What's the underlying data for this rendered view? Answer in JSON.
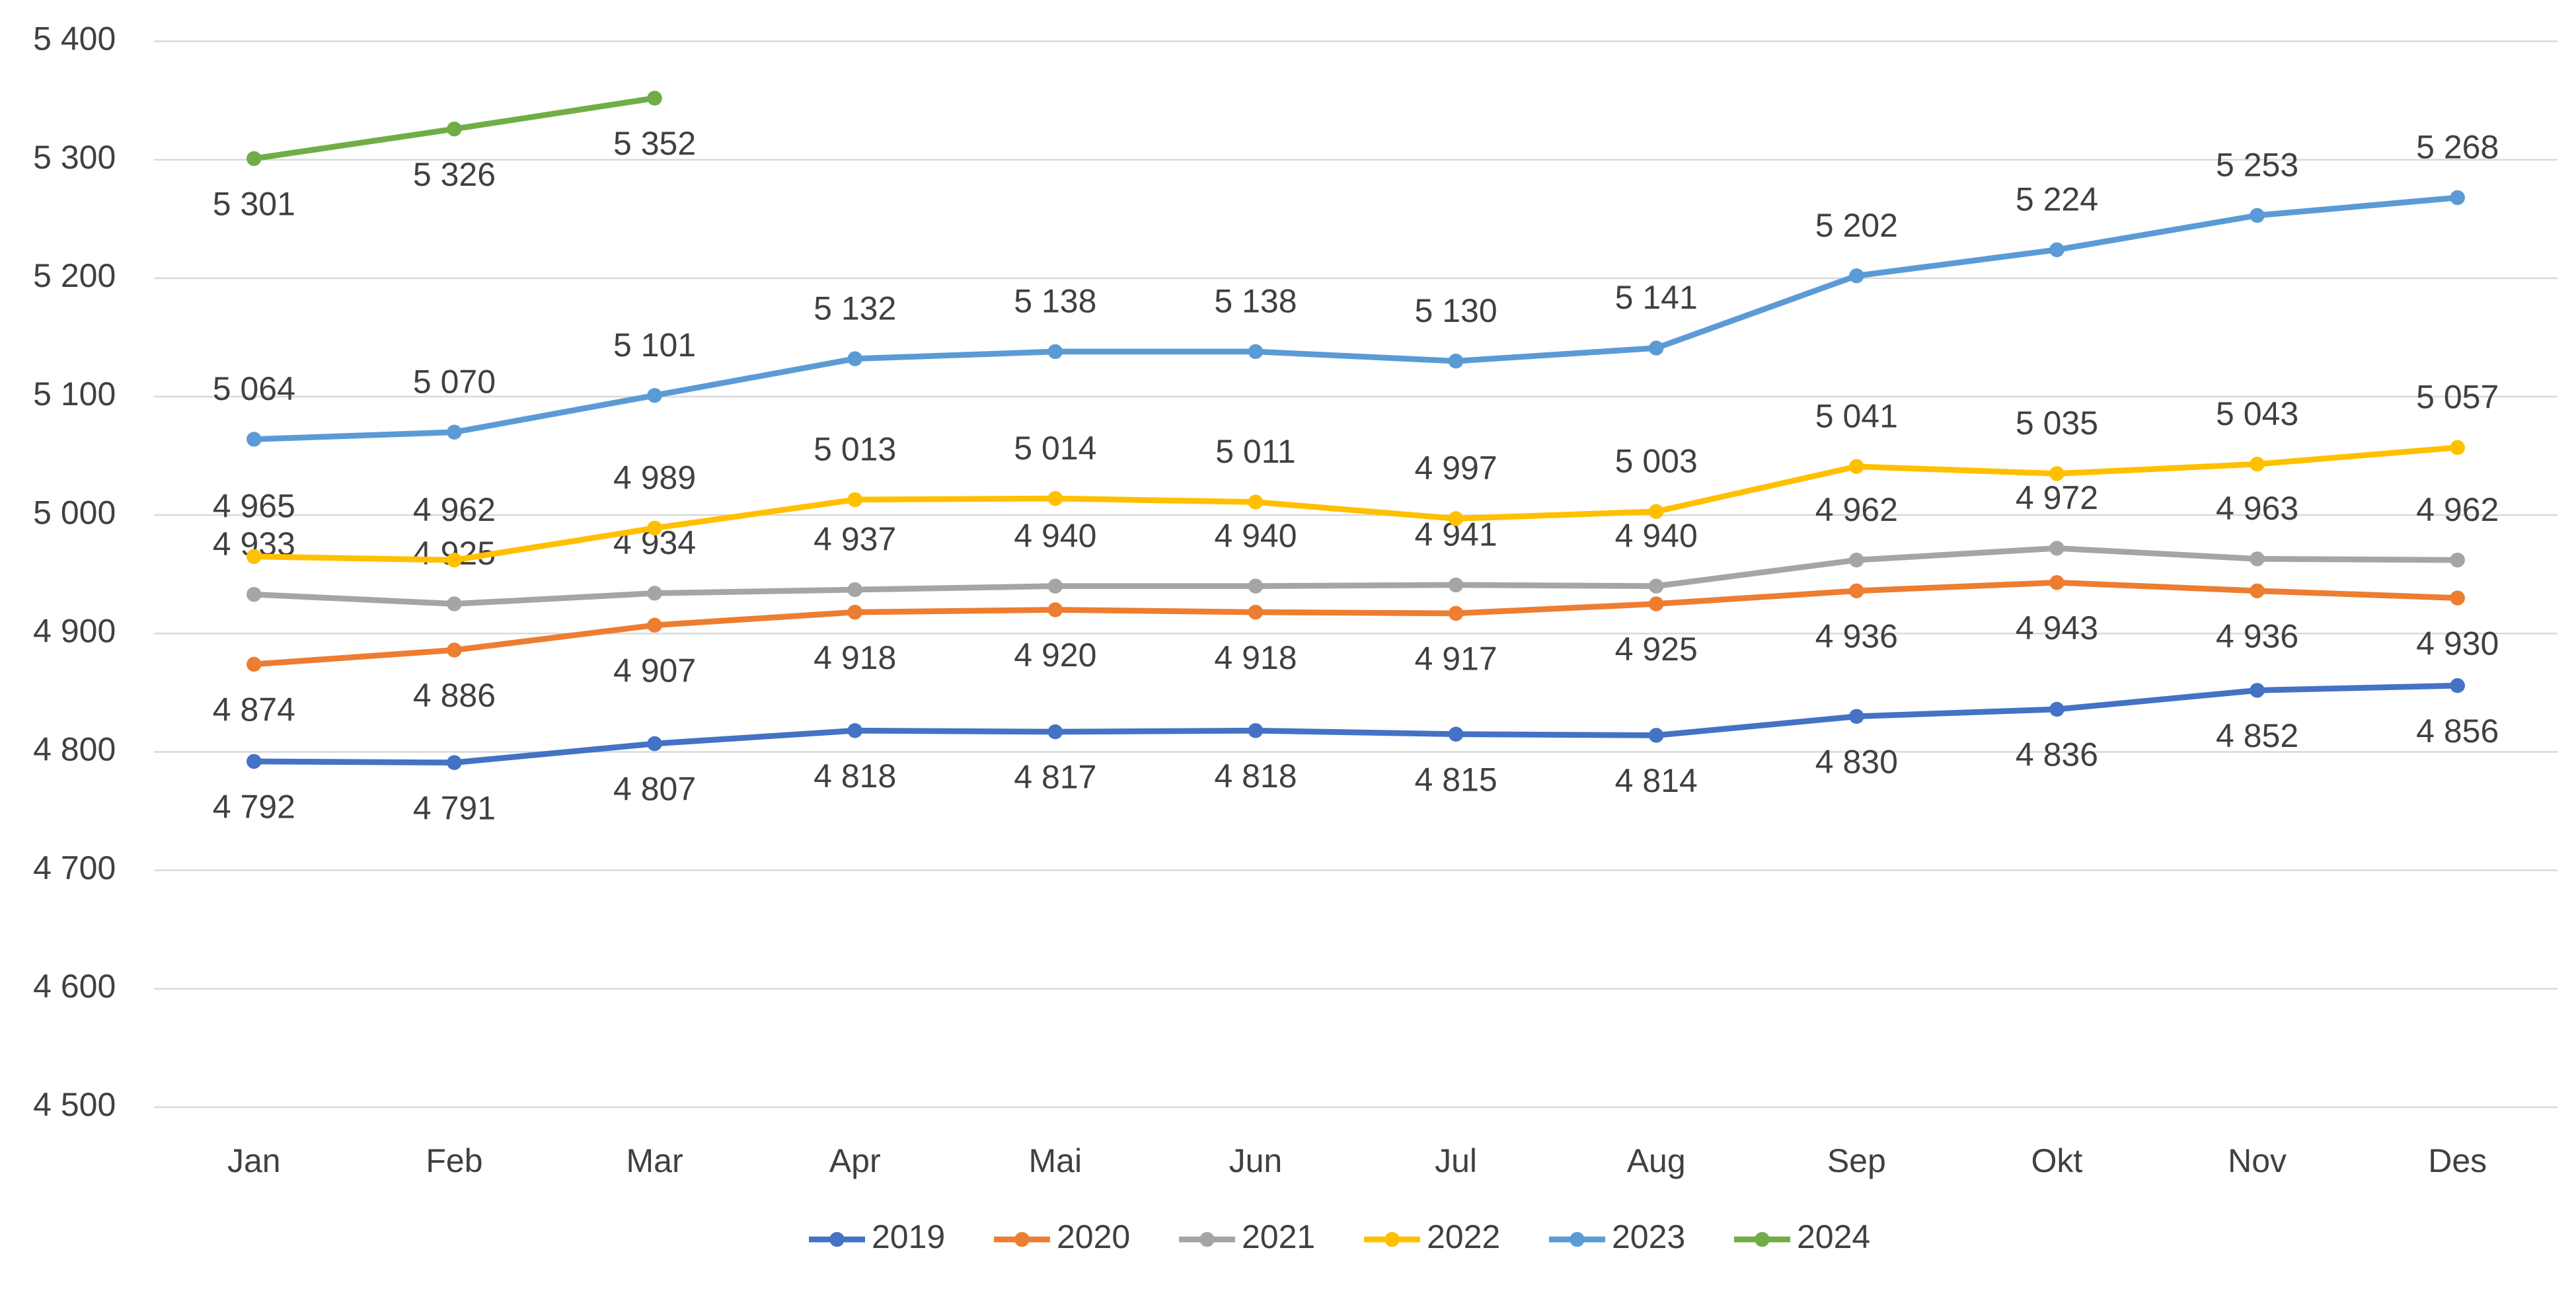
{
  "chart_data": {
    "type": "line",
    "categories": [
      "Jan",
      "Feb",
      "Mar",
      "Apr",
      "Mai",
      "Jun",
      "Jul",
      "Aug",
      "Sep",
      "Okt",
      "Nov",
      "Des"
    ],
    "ylim": [
      4500,
      5400
    ],
    "yticks": [
      {
        "value": 4500,
        "label": "4 500"
      },
      {
        "value": 4600,
        "label": "4 600"
      },
      {
        "value": 4700,
        "label": "4 700"
      },
      {
        "value": 4800,
        "label": "4 800"
      },
      {
        "value": 4900,
        "label": "4 900"
      },
      {
        "value": 5000,
        "label": "5 000"
      },
      {
        "value": 5100,
        "label": "5 100"
      },
      {
        "value": 5200,
        "label": "5 200"
      },
      {
        "value": 5300,
        "label": "5 300"
      },
      {
        "value": 5400,
        "label": "5 400"
      }
    ],
    "grid": true,
    "legend": "bottom",
    "series": [
      {
        "name": "2019",
        "color": "#4472c4",
        "values": [
          4792,
          4791,
          4807,
          4818,
          4817,
          4818,
          4815,
          4814,
          4830,
          4836,
          4852,
          4856
        ],
        "value_labels": [
          "4 792",
          "4 791",
          "4 807",
          "4 818",
          "4 817",
          "4 818",
          "4 815",
          "4 814",
          "4 830",
          "4 836",
          "4 852",
          "4 856"
        ]
      },
      {
        "name": "2020",
        "color": "#ed7d31",
        "values": [
          4874,
          4886,
          4907,
          4918,
          4920,
          4918,
          4917,
          4925,
          4936,
          4943,
          4936,
          4930
        ],
        "value_labels": [
          "4 874",
          "4 886",
          "4 907",
          "4 918",
          "4 920",
          "4 918",
          "4 917",
          "4 925",
          "4 936",
          "4 943",
          "4 936",
          "4 930"
        ]
      },
      {
        "name": "2021",
        "color": "#a5a5a5",
        "values": [
          4933,
          4925,
          4934,
          4937,
          4940,
          4940,
          4941,
          4940,
          4962,
          4972,
          4963,
          4962
        ],
        "value_labels": [
          "4 933",
          "4 925",
          "4 934",
          "4 937",
          "4 940",
          "4 940",
          "4 941",
          "4 940",
          "4 962",
          "4 972",
          "4 963",
          "4 962"
        ]
      },
      {
        "name": "2022",
        "color": "#ffc000",
        "values": [
          4965,
          4962,
          4989,
          5013,
          5014,
          5011,
          4997,
          5003,
          5041,
          5035,
          5043,
          5057
        ],
        "value_labels": [
          "4 965",
          "4 962",
          "4 989",
          "5 013",
          "5 014",
          "5 011",
          "4 997",
          "5 003",
          "5 041",
          "5 035",
          "5 043",
          "5 057"
        ]
      },
      {
        "name": "2023",
        "color": "#5b9bd5",
        "values": [
          5064,
          5070,
          5101,
          5132,
          5138,
          5138,
          5130,
          5141,
          5202,
          5224,
          5253,
          5268
        ],
        "value_labels": [
          "5 064",
          "5 070",
          "5 101",
          "5 132",
          "5 138",
          "5 138",
          "5 130",
          "5 141",
          "5 202",
          "5 224",
          "5 253",
          "5 268"
        ]
      },
      {
        "name": "2024",
        "color": "#70ad47",
        "values": [
          5301,
          5326,
          5352,
          null,
          null,
          null,
          null,
          null,
          null,
          null,
          null,
          null
        ],
        "value_labels": [
          "5 301",
          "5 326",
          "5 352",
          null,
          null,
          null,
          null,
          null,
          null,
          null,
          null,
          null
        ]
      }
    ]
  }
}
